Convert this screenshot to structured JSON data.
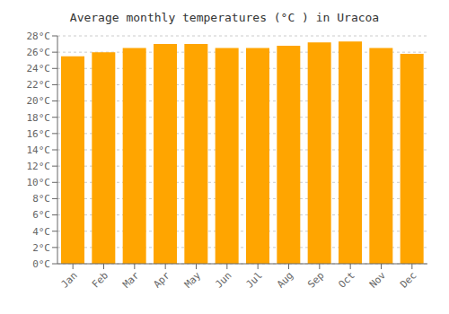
{
  "chart_data": {
    "type": "bar",
    "title": "Average monthly temperatures (°C ) in Uracoa",
    "categories": [
      "Jan",
      "Feb",
      "Mar",
      "Apr",
      "May",
      "Jun",
      "Jul",
      "Aug",
      "Sep",
      "Oct",
      "Nov",
      "Dec"
    ],
    "values": [
      25.5,
      26.0,
      26.5,
      27.0,
      27.0,
      26.5,
      26.5,
      26.8,
      27.2,
      27.3,
      26.5,
      25.8
    ],
    "color": "#FFA500",
    "ylim": [
      0,
      28
    ],
    "yticks": [
      {
        "value": 0,
        "label": "0°C"
      },
      {
        "value": 2,
        "label": "2°C"
      },
      {
        "value": 4,
        "label": "4°C"
      },
      {
        "value": 6,
        "label": "6°C"
      },
      {
        "value": 8,
        "label": "8°C"
      },
      {
        "value": 10,
        "label": "10°C"
      },
      {
        "value": 12,
        "label": "12°C"
      },
      {
        "value": 14,
        "label": "14°C"
      },
      {
        "value": 16,
        "label": "16°C"
      },
      {
        "value": 18,
        "label": "18°C"
      },
      {
        "value": 20,
        "label": "20°C"
      },
      {
        "value": 22,
        "label": "22°C"
      },
      {
        "value": 24,
        "label": "24°C"
      },
      {
        "value": 26,
        "label": "26°C"
      },
      {
        "value": 28,
        "label": "28°C"
      }
    ],
    "grid": true
  }
}
